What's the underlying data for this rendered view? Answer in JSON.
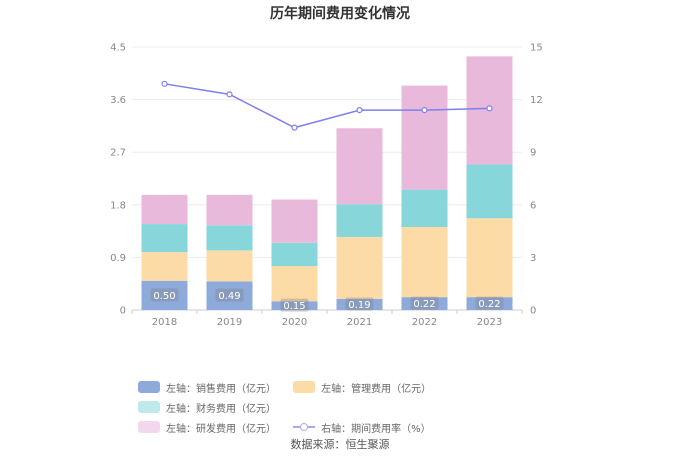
{
  "chart_data": {
    "type": "bar",
    "title": "历年期间费用变化情况",
    "categories": [
      "2018",
      "2019",
      "2020",
      "2021",
      "2022",
      "2023"
    ],
    "left_axis": {
      "min": 0,
      "max": 4.5,
      "ticks": [
        "0",
        "0.9",
        "1.8",
        "2.7",
        "3.6",
        "4.5"
      ]
    },
    "right_axis": {
      "min": 0,
      "max": 15,
      "ticks": [
        "0",
        "3",
        "6",
        "9",
        "12",
        "15"
      ]
    },
    "stacked": true,
    "grid": true,
    "legend_position": "bottom",
    "series": [
      {
        "name": "左轴：销售费用（亿元）",
        "color": "#8eaadb",
        "values": [
          0.5,
          0.49,
          0.15,
          0.19,
          0.22,
          0.22
        ],
        "data_labels": [
          "0.50",
          "0.49",
          "0.15",
          "0.19",
          "0.22",
          "0.22"
        ]
      },
      {
        "name": "左轴：管理费用（亿元）",
        "color": "#fddba6",
        "values": [
          0.49,
          0.53,
          0.6,
          1.06,
          1.2,
          1.35
        ]
      },
      {
        "name": "左轴：财务费用（亿元）",
        "color": "#86d6da",
        "values": [
          0.48,
          0.43,
          0.4,
          0.56,
          0.64,
          0.92
        ]
      },
      {
        "name": "左轴：研发费用（亿元）",
        "color": "#e9b9db",
        "values": [
          0.5,
          0.52,
          0.74,
          1.3,
          1.78,
          1.85
        ]
      },
      {
        "name": "右轴：期间费用率（%）",
        "color": "#7e7ef0",
        "type": "line",
        "axis": "right",
        "values": [
          12.9,
          12.3,
          10.4,
          11.4,
          11.4,
          11.5
        ]
      }
    ]
  },
  "source": "数据来源：恒生聚源"
}
